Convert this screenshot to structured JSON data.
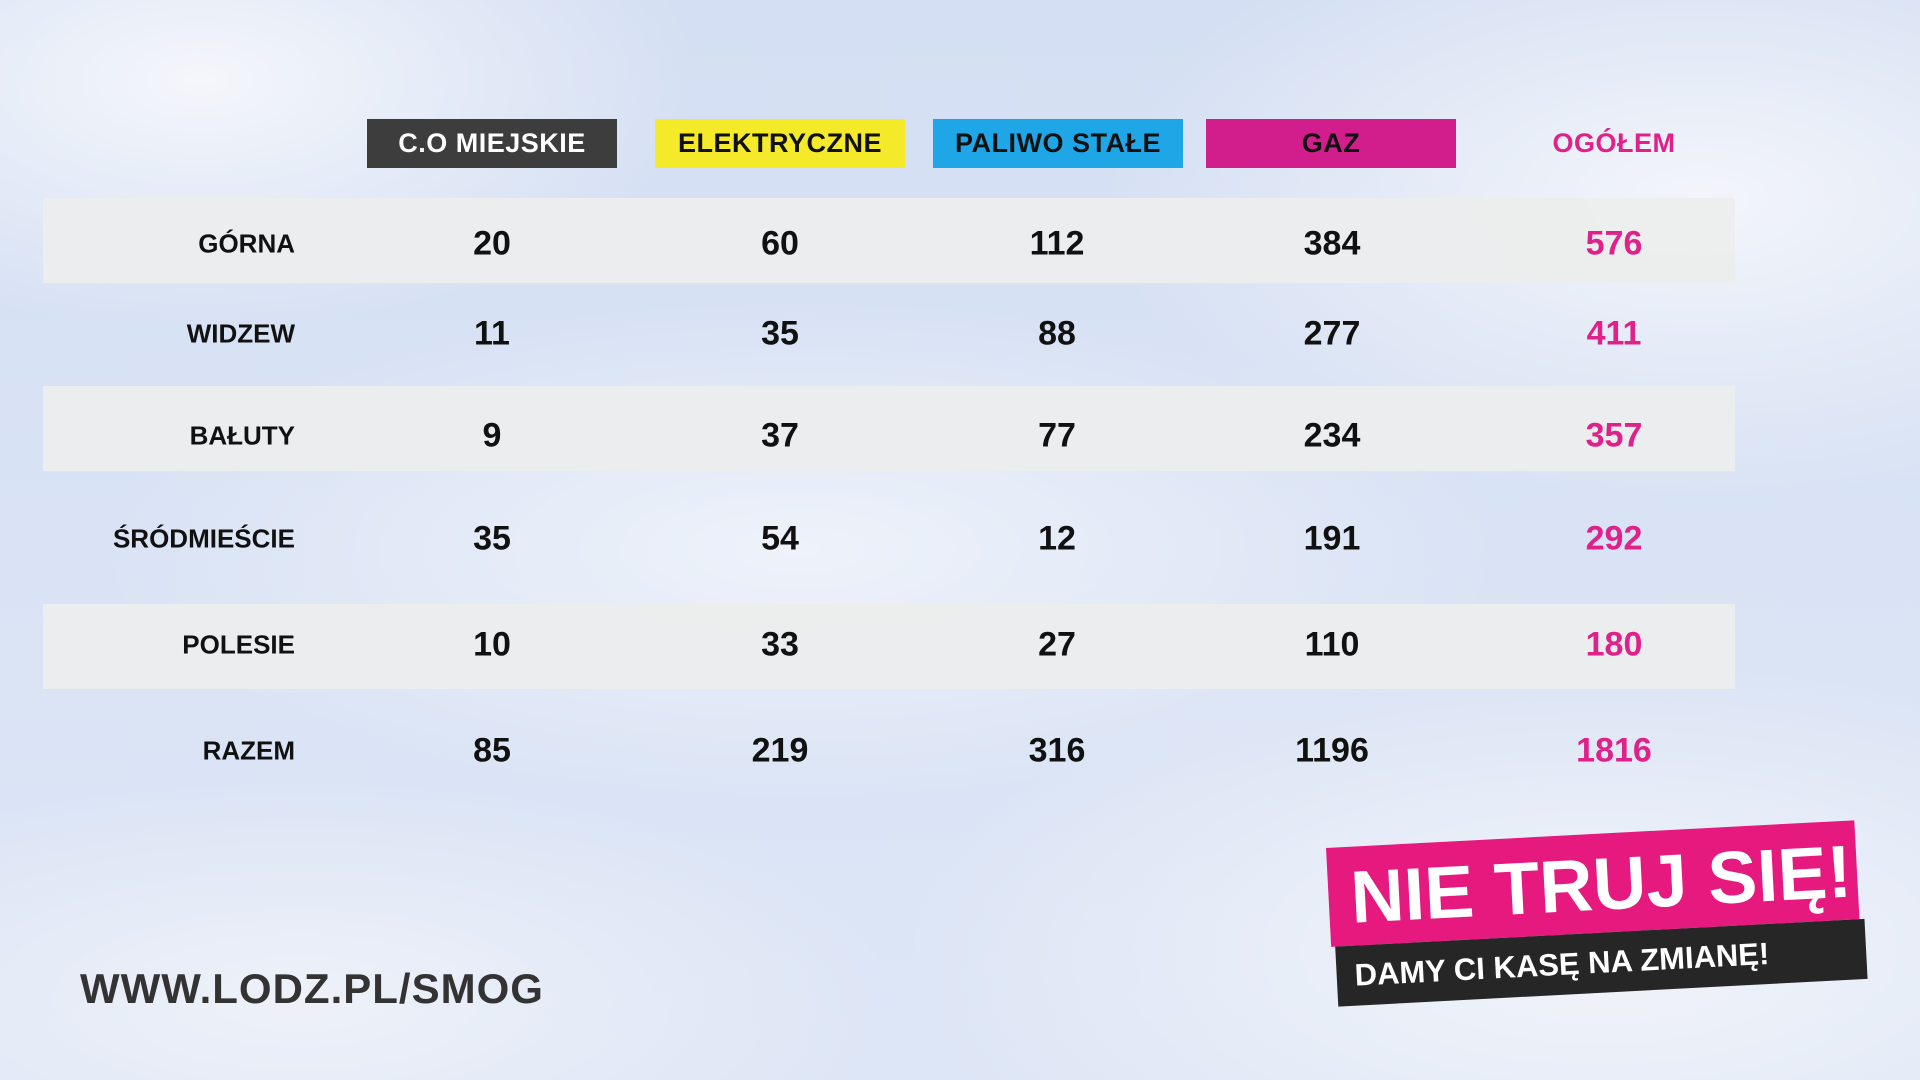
{
  "columns": [
    {
      "label": "C.O MIEJSKIE",
      "bg": "#3d3d3d",
      "color": "#ffffff"
    },
    {
      "label": "ELEKTRYCZNE",
      "bg": "#f5ea2a",
      "color": "#111111"
    },
    {
      "label": "PALIWO STAŁE",
      "bg": "#1ea6e6",
      "color": "#111111"
    },
    {
      "label": "GAZ",
      "bg": "#d21d8c",
      "color": "#111111"
    },
    {
      "label": "OGÓŁEM",
      "bg": "transparent",
      "color": "#e0218a"
    }
  ],
  "rows": [
    {
      "label": "GÓRNA",
      "values": [
        "20",
        "60",
        "112",
        "384",
        "576"
      ]
    },
    {
      "label": "WIDZEW",
      "values": [
        "11",
        "35",
        "88",
        "277",
        "411"
      ]
    },
    {
      "label": "BAŁUTY",
      "values": [
        "9",
        "37",
        "77",
        "234",
        "357"
      ]
    },
    {
      "label": "ŚRÓDMIEŚCIE",
      "values": [
        "35",
        "54",
        "12",
        "191",
        "292"
      ]
    },
    {
      "label": "POLESIE",
      "values": [
        "10",
        "33",
        "27",
        "110",
        "180"
      ]
    },
    {
      "label": "RAZEM",
      "values": [
        "85",
        "219",
        "316",
        "1196",
        "1816"
      ]
    }
  ],
  "footer": {
    "url": "WWW.LODZ.PL/SMOG"
  },
  "badge": {
    "headline": "NIE TRUJ SIĘ!",
    "subline": "DAMY CI KASĘ NA ZMIANĘ!"
  },
  "colors": {
    "accent": "#e5197e",
    "dark": "#262626"
  }
}
